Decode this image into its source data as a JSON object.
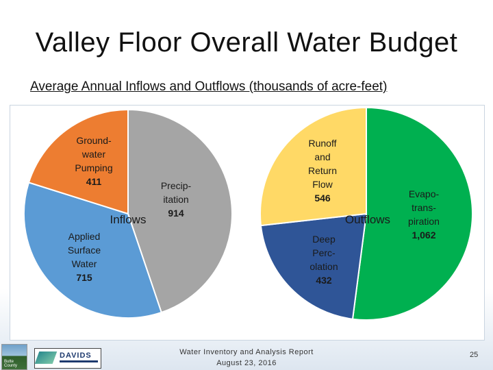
{
  "slide": {
    "title": "Valley Floor Overall Water Budget",
    "subtitle": "Average Annual Inflows and Outflows (thousands of acre-feet)",
    "footer_line1": "Water Inventory and Analysis Report",
    "footer_line2": "August 23, 2016",
    "page_number": "25",
    "logo_left_text": "Butte County",
    "logo_right_text": "DAVIDS"
  },
  "chart_data": [
    {
      "type": "pie",
      "title": "Inflows",
      "slices": [
        {
          "label_lines": [
            "Precip-",
            "itation"
          ],
          "value": 914,
          "value_text": "914",
          "color": "#a5a5a5"
        },
        {
          "label_lines": [
            "Applied",
            "Surface",
            "Water"
          ],
          "value": 715,
          "value_text": "715",
          "color": "#5b9bd5"
        },
        {
          "label_lines": [
            "Ground-",
            "water",
            "Pumping"
          ],
          "value": 411,
          "value_text": "411",
          "color": "#ed7d31"
        }
      ]
    },
    {
      "type": "pie",
      "title": "Outflows",
      "slices": [
        {
          "label_lines": [
            "Evapo-",
            "trans-",
            "piration"
          ],
          "value": 1062,
          "value_text": "1,062",
          "color": "#00b050"
        },
        {
          "label_lines": [
            "Deep",
            "Perc-",
            "olation"
          ],
          "value": 432,
          "value_text": "432",
          "color": "#2f5597"
        },
        {
          "label_lines": [
            "Runoff",
            "and",
            "Return",
            "Flow"
          ],
          "value": 546,
          "value_text": "546",
          "color": "#ffd966"
        }
      ]
    }
  ]
}
